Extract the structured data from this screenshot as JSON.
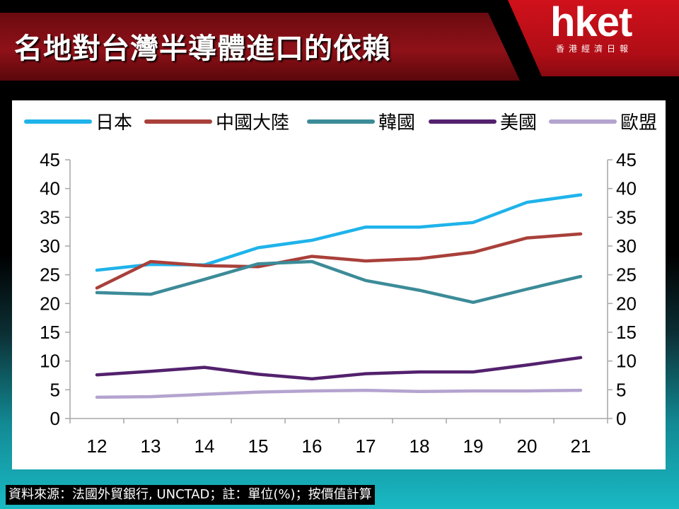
{
  "header": {
    "title": "名地對台灣半導體進口的依賴",
    "logo_word": "hket",
    "logo_sub": "香港經濟日報"
  },
  "footer": {
    "source": "資料來源：法國外貿銀行, UNCTAD；註：單位(%)；按價值計算"
  },
  "colors": {
    "header_band": "#8f1118",
    "logo_red": "#d0111b",
    "panel_bg": "#ffffff"
  },
  "chart_data": {
    "type": "line",
    "title": "",
    "xlabel": "",
    "ylabel": "",
    "categories": [
      "12",
      "13",
      "14",
      "15",
      "16",
      "17",
      "18",
      "19",
      "20",
      "21"
    ],
    "ylim": [
      0,
      45
    ],
    "yticks": [
      "0",
      "5",
      "10",
      "15",
      "20",
      "25",
      "30",
      "35",
      "40",
      "45"
    ],
    "secondary_y_axis": true,
    "grid": false,
    "legend_position": "top",
    "series": [
      {
        "name": "日本",
        "color": "#1fb3ea",
        "values": [
          25.8,
          26.8,
          26.7,
          29.7,
          31.0,
          33.3,
          33.3,
          34.1,
          37.6,
          38.9
        ]
      },
      {
        "name": "中國大陸",
        "color": "#a9403a",
        "values": [
          22.7,
          27.3,
          26.6,
          26.4,
          28.2,
          27.4,
          27.8,
          28.9,
          31.4,
          32.1
        ]
      },
      {
        "name": "韓國",
        "color": "#3c8b98",
        "values": [
          21.9,
          21.6,
          24.2,
          26.9,
          27.3,
          24.0,
          22.3,
          20.2,
          22.5,
          24.7
        ]
      },
      {
        "name": "美國",
        "color": "#53216d",
        "values": [
          7.6,
          8.2,
          8.9,
          7.7,
          6.9,
          7.8,
          8.1,
          8.1,
          9.3,
          10.6
        ]
      },
      {
        "name": "歐盟",
        "color": "#b4a3cf",
        "values": [
          3.7,
          3.8,
          4.2,
          4.6,
          4.8,
          4.9,
          4.7,
          4.8,
          4.8,
          4.9
        ]
      }
    ]
  }
}
